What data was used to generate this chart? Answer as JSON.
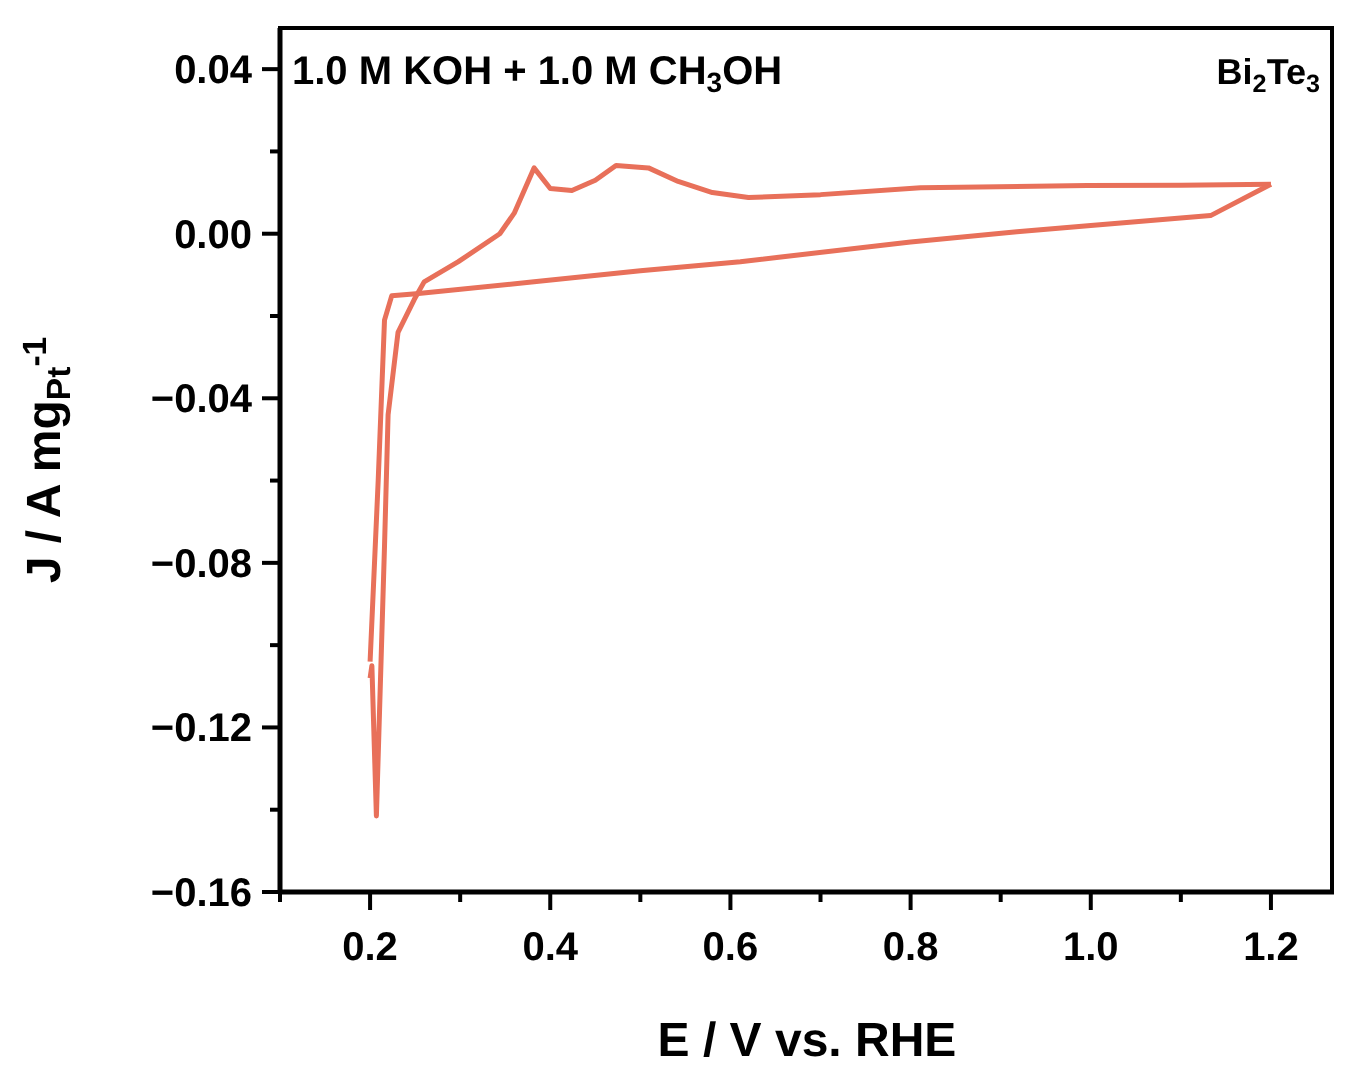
{
  "chart_data": {
    "type": "line",
    "xlabel": "E / V vs. RHE",
    "ylabel": "J / A mg$_{Pt}$$^{-1}$",
    "annotations": [
      "1.0 M KOH + 1.0 M  CH$_{3}$OH",
      "Bi$_{2}$Te$_{3}$"
    ],
    "xlim": [
      0.1,
      1.27
    ],
    "ylim": [
      -0.16,
      0.05
    ],
    "xticks": [
      {
        "value": 0.1,
        "label": null
      },
      0.2,
      {
        "value": 0.3,
        "label": null
      },
      0.4,
      {
        "value": 0.5,
        "label": null
      },
      0.6,
      {
        "value": 0.7,
        "label": null
      },
      0.8,
      {
        "value": 0.9,
        "label": null
      },
      {
        "value": 1.0,
        "label": "1.0"
      },
      {
        "value": 1.1,
        "label": null
      },
      1.2
    ],
    "yticks": [
      {
        "value": -0.16,
        "label": "−0.16"
      },
      {
        "value": -0.14,
        "label": null
      },
      {
        "value": -0.12,
        "label": "−0.12"
      },
      {
        "value": -0.1,
        "label": null
      },
      {
        "value": -0.08,
        "label": "−0.08"
      },
      {
        "value": -0.06,
        "label": null
      },
      {
        "value": -0.04,
        "label": "−0.04"
      },
      {
        "value": -0.02,
        "label": null
      },
      {
        "value": 0,
        "label": "0.00"
      },
      {
        "value": 0.02,
        "label": null
      },
      {
        "value": 0.04,
        "label": "0.04"
      }
    ],
    "grid": false,
    "legend": false,
    "marker": "none",
    "line_style": "solid",
    "series": [
      {
        "color": "#e8705a",
        "x": [
          0.2,
          0.202,
          0.207,
          0.216,
          0.22,
          0.231,
          0.249,
          0.26,
          0.298,
          0.344,
          0.36,
          0.382,
          0.4,
          0.424,
          0.45,
          0.473,
          0.509,
          0.542,
          0.58,
          0.62,
          0.7,
          0.811,
          0.996,
          1.1,
          1.2
        ],
        "values": [
          -0.108,
          -0.105,
          -0.1415,
          -0.076,
          -0.044,
          -0.024,
          -0.016,
          -0.0117,
          -0.0068,
          0.0,
          0.005,
          0.016,
          0.011,
          0.0105,
          0.013,
          0.0166,
          0.016,
          0.0127,
          0.01,
          0.0088,
          0.0095,
          0.0112,
          0.0117,
          0.0118,
          0.012
        ]
      },
      {
        "color": "#e8705a",
        "x": [
          1.2,
          1.133,
          1.0,
          0.918,
          0.8,
          0.611,
          0.5,
          0.382,
          0.251,
          0.224,
          0.216,
          0.209,
          0.2
        ],
        "values": [
          0.012,
          0.0044,
          0.002,
          0.0005,
          -0.002,
          -0.0068,
          -0.009,
          -0.0117,
          -0.0146,
          -0.0151,
          -0.021,
          -0.06,
          -0.104
        ]
      }
    ]
  }
}
